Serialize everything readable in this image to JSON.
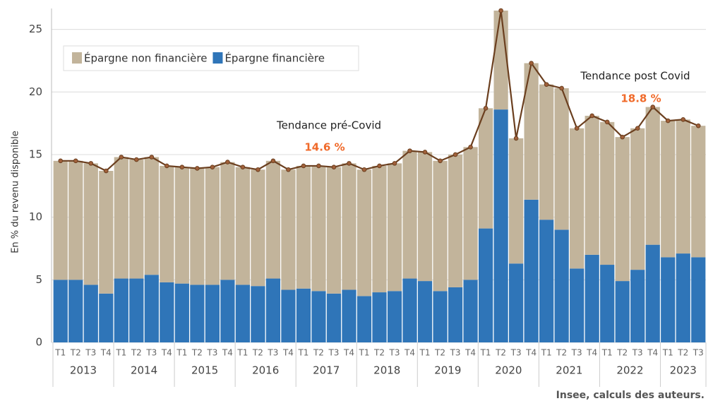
{
  "chart_data": {
    "type": "stacked-bar-line",
    "y_label": "En % du revenu disponible",
    "source": "Insee, calculs des auteurs.",
    "categories": [
      "T1",
      "T2",
      "T3",
      "T4",
      "T1",
      "T2",
      "T3",
      "T4",
      "T1",
      "T2",
      "T3",
      "T4",
      "T1",
      "T2",
      "T3",
      "T4",
      "T1",
      "T2",
      "T3",
      "T4",
      "T1",
      "T2",
      "T3",
      "T4",
      "T1",
      "T2",
      "T3",
      "T4",
      "T1",
      "T2",
      "T3",
      "T4",
      "T1",
      "T2",
      "T3",
      "T4",
      "T1",
      "T2",
      "T3",
      "T4",
      "T1",
      "T2",
      "T3"
    ],
    "years": [
      "2013",
      "2014",
      "2015",
      "2016",
      "2017",
      "2018",
      "2019",
      "2020",
      "2021",
      "2022",
      "2023"
    ],
    "series": [
      {
        "name": "Épargne financière",
        "color": "#2f75b8",
        "values": [
          5.0,
          5.0,
          4.6,
          3.9,
          5.1,
          5.1,
          5.4,
          4.8,
          4.7,
          4.6,
          4.6,
          5.0,
          4.6,
          4.5,
          5.1,
          4.2,
          4.3,
          4.1,
          3.9,
          4.2,
          3.7,
          4.0,
          4.1,
          5.1,
          4.9,
          4.1,
          4.4,
          5.0,
          9.1,
          18.6,
          6.3,
          11.4,
          9.8,
          9.0,
          5.9,
          7.0,
          6.2,
          4.9,
          5.8,
          7.8,
          6.8,
          7.1,
          6.8
        ]
      },
      {
        "name": "Épargne non financière",
        "color": "#c2b49b",
        "values": [
          9.5,
          9.5,
          9.7,
          9.8,
          9.7,
          9.5,
          9.4,
          9.3,
          9.3,
          9.3,
          9.4,
          9.4,
          9.4,
          9.3,
          9.4,
          9.6,
          9.8,
          10.0,
          10.1,
          10.1,
          10.1,
          10.1,
          10.2,
          10.2,
          10.3,
          10.4,
          10.6,
          10.6,
          9.6,
          7.9,
          10.0,
          10.9,
          10.8,
          11.3,
          11.2,
          11.1,
          11.4,
          11.5,
          11.3,
          11.0,
          10.9,
          10.7,
          10.5
        ]
      }
    ],
    "legend_order": [
      1,
      0
    ],
    "legend_position": "top-left",
    "line": {
      "color": "#6b3f1f",
      "values": [
        14.5,
        14.5,
        14.3,
        13.7,
        14.8,
        14.6,
        14.8,
        14.1,
        14.0,
        13.9,
        14.0,
        14.4,
        14.0,
        13.8,
        14.5,
        13.8,
        14.1,
        14.1,
        14.0,
        14.3,
        13.8,
        14.1,
        14.3,
        15.3,
        15.2,
        14.5,
        15.0,
        15.6,
        18.7,
        26.5,
        16.3,
        22.3,
        20.6,
        20.3,
        17.1,
        18.1,
        17.6,
        16.4,
        17.1,
        18.8,
        17.7,
        17.8,
        17.3
      ]
    },
    "annotations": [
      {
        "text": "Tendance pré-Covid",
        "value_text": "14.6 %"
      },
      {
        "text": "Tendance post Covid",
        "value_text": "18.8 %"
      }
    ],
    "ylim": [
      0,
      26.5
    ],
    "yticks": [
      0,
      5,
      10,
      15,
      20,
      25
    ],
    "grid": true
  }
}
